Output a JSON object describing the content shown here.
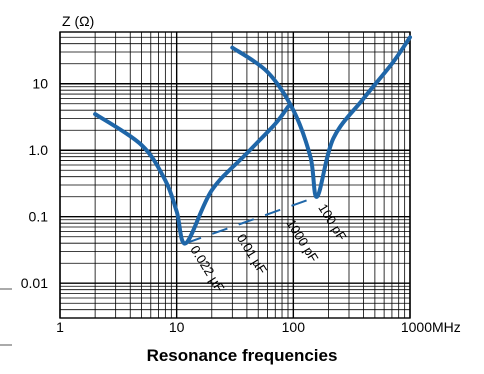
{
  "chart_data": {
    "type": "line",
    "title": "Resonance frequencies",
    "ylabel": "Z (Ω)",
    "xunit": "MHz",
    "xscale": "log",
    "yscale": "log",
    "xlim": [
      1,
      1000
    ],
    "ylim": [
      0.003,
      60
    ],
    "grid": true,
    "legend": "none",
    "accent_color": "#1f66a8",
    "x_ticks": [
      {
        "value": 1,
        "label": "1"
      },
      {
        "value": 10,
        "label": "10"
      },
      {
        "value": 100,
        "label": "100"
      },
      {
        "value": 1000,
        "label": "1000"
      }
    ],
    "y_ticks": [
      {
        "value": 10,
        "label": "10"
      },
      {
        "value": 1,
        "label": "1.0"
      },
      {
        "value": 0.1,
        "label": "0.1"
      },
      {
        "value": 0.01,
        "label": "0.01"
      }
    ],
    "series": [
      {
        "x": [
          2,
          5,
          8,
          10,
          12,
          20,
          40,
          70,
          90
        ],
        "y": [
          3.5,
          1.2,
          0.35,
          0.12,
          0.04,
          0.25,
          0.9,
          2.5,
          4.5
        ]
      },
      {
        "x": [
          30,
          60,
          100,
          140,
          160,
          220,
          400,
          700,
          1000
        ],
        "y": [
          35,
          15,
          4,
          0.8,
          0.2,
          1.5,
          6,
          20,
          50
        ]
      }
    ],
    "resonance_trend": {
      "x": [
        12,
        160
      ],
      "y": [
        0.04,
        0.2
      ]
    },
    "annotations": [
      {
        "text": "0.022 µF",
        "x": 12,
        "y": 0.04
      },
      {
        "text": "0.01 µF",
        "x": 30,
        "y": 0.06
      },
      {
        "text": "1000 pF",
        "x": 80,
        "y": 0.1
      },
      {
        "text": "100 pF",
        "x": 150,
        "y": 0.17
      }
    ]
  }
}
